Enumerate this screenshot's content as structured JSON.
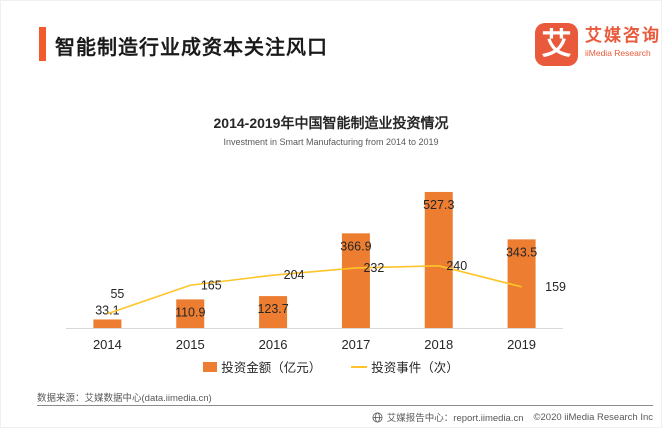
{
  "page": {
    "header": {
      "title": "智能制造行业成资本关注风口"
    },
    "logo": {
      "glyph": "艾",
      "name_cn": "艾媒咨询",
      "name_en": "iiMedia Research"
    },
    "footer": {
      "source": "数据来源：艾媒数据中心(data.iimedia.cn)",
      "report_center": "艾媒报告中心：report.iimedia.cn",
      "copyright": "©2020  iiMedia Research Inc"
    }
  },
  "chart_data": {
    "type": "bar+line",
    "title": "2014-2019年中国智能制造业投资情况",
    "subtitle": "Investment in Smart Manufacturing from 2014 to 2019",
    "categories": [
      "2014",
      "2015",
      "2016",
      "2017",
      "2018",
      "2019"
    ],
    "series": [
      {
        "name": "投资金额（亿元）",
        "type": "bar",
        "color": "#ED7D31",
        "values": [
          33.1,
          110.9,
          123.7,
          366.9,
          527.3,
          343.5
        ]
      },
      {
        "name": "投资事件（次）",
        "type": "line",
        "color": "#FFC429",
        "values": [
          55,
          165,
          204,
          232,
          240,
          159
        ]
      }
    ],
    "ylim": [
      0,
      570
    ],
    "grid": false,
    "legend_position": "bottom",
    "axis_color": "#D9D9D9",
    "label_color": "#262626"
  }
}
